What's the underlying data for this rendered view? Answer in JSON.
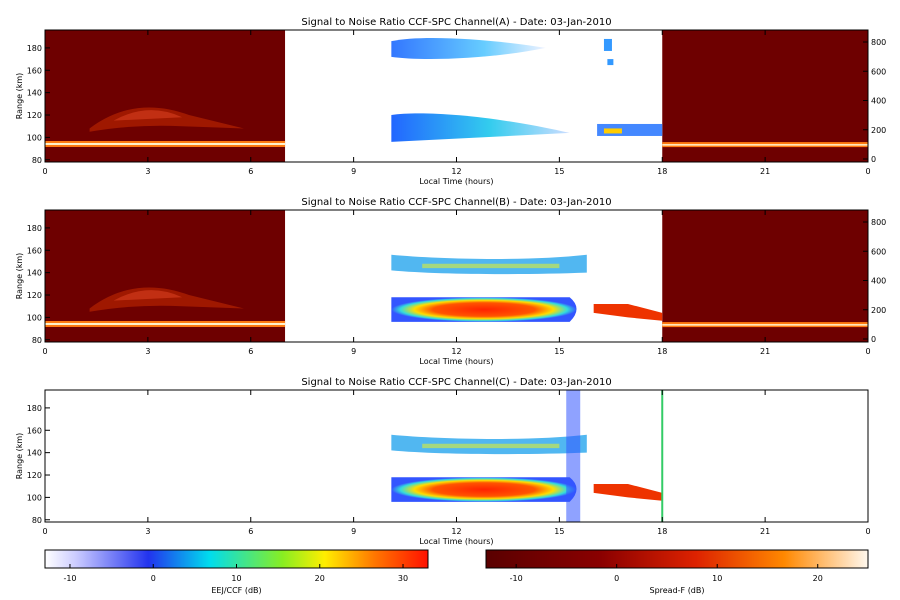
{
  "chart_data": [
    {
      "type": "heatmap",
      "title": "Signal to Noise Ratio CCF-SPC Channel(A) - Date: 03-Jan-2010",
      "xlabel": "Local Time (hours)",
      "ylabel": "Range (km)",
      "xlim": [
        0,
        24
      ],
      "ylim": [
        78,
        196
      ],
      "x_ticks": [
        "0",
        "3",
        "6",
        "9",
        "12",
        "15",
        "18",
        "21",
        "0"
      ],
      "y_ticks": [
        "80",
        "100",
        "120",
        "140",
        "160",
        "180"
      ],
      "y2_ticks": [
        "0",
        "200",
        "400",
        "600",
        "800"
      ],
      "night_left_hours": [
        0,
        7
      ],
      "night_right_hours": [
        18,
        24
      ],
      "day_data_hours": [
        10,
        18
      ],
      "has_left_night": true,
      "has_right_night": true,
      "has_right_axis": true
    },
    {
      "type": "heatmap",
      "title": "Signal to Noise Ratio CCF-SPC Channel(B) - Date: 03-Jan-2010",
      "xlabel": "Local Time (hours)",
      "ylabel": "Range (km)",
      "xlim": [
        0,
        24
      ],
      "ylim": [
        78,
        196
      ],
      "x_ticks": [
        "0",
        "3",
        "6",
        "9",
        "12",
        "15",
        "18",
        "21",
        "0"
      ],
      "y_ticks": [
        "80",
        "100",
        "120",
        "140",
        "160",
        "180"
      ],
      "y2_ticks": [
        "0",
        "200",
        "400",
        "600",
        "800"
      ],
      "night_left_hours": [
        0,
        7
      ],
      "night_right_hours": [
        18,
        24
      ],
      "day_data_hours": [
        10,
        18
      ],
      "has_left_night": true,
      "has_right_night": true,
      "has_right_axis": true
    },
    {
      "type": "heatmap",
      "title": "Signal to Noise Ratio CCF-SPC Channel(C) - Date: 03-Jan-2010",
      "xlabel": "Local Time (hours)",
      "ylabel": "Range (km)",
      "xlim": [
        0,
        24
      ],
      "ylim": [
        78,
        196
      ],
      "x_ticks": [
        "0",
        "3",
        "6",
        "9",
        "12",
        "15",
        "18",
        "21",
        "0"
      ],
      "y_ticks": [
        "80",
        "100",
        "120",
        "140",
        "160",
        "180"
      ],
      "day_data_hours": [
        10,
        18
      ],
      "has_left_night": false,
      "has_right_night": false,
      "has_right_axis": false
    }
  ],
  "colorbars": [
    {
      "label": "EEJ/CCF (dB)",
      "ticks": [
        -10,
        0,
        10,
        20,
        30
      ],
      "range": [
        -13,
        33
      ],
      "colors": [
        "#ffffff",
        "#2233ee",
        "#00e5ee",
        "#ffee00",
        "#ff2200"
      ]
    },
    {
      "label": "Spread-F (dB)",
      "ticks": [
        -10,
        0,
        10,
        20
      ],
      "range": [
        -13,
        25
      ],
      "colors": [
        "#6a0000",
        "#cc1a00",
        "#ff8800",
        "#ffffee"
      ]
    }
  ]
}
